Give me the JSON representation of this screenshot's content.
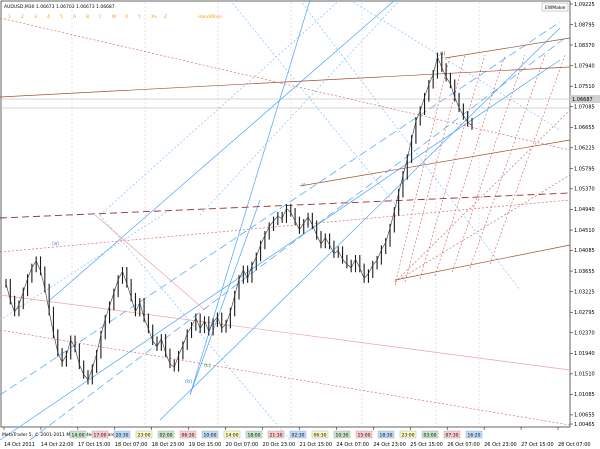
{
  "header": {
    "symbol_line": "AUDUSD,M30  1.06673 1.06703 1.06673 1.06687",
    "wave_tags": [
      "1",
      "2",
      "3",
      "4",
      "5",
      "A",
      "B",
      "C",
      "W",
      "X",
      "Y",
      "Xx",
      "Z"
    ],
    "wave_tag_color": "#ff9900",
    "extra_label": "Hand/Ross",
    "ew_maker_label": "EWMaker"
  },
  "footer": {
    "platform_label": "MetaTrader 5, © 2001-2011 MetaQuotes Software Corp.",
    "timeframe_labels": [
      "14:00",
      "17:00",
      "20:30",
      "23:00",
      "02:00",
      "06:30",
      "10:00",
      "14:00",
      "18:00",
      "21:30",
      "02:30",
      "06:30",
      "10:30",
      "15:00",
      "18:30",
      "23:00",
      "03:00",
      "07:30",
      "16:20"
    ]
  },
  "chart_data": {
    "type": "candlestick",
    "symbol": "AUDUSD",
    "timeframe": "M30",
    "ylim": [
      1.00465,
      1.09225
    ],
    "y_ticks": [
      "1.09225",
      "1.08795",
      "1.08370",
      "1.07940",
      "1.07510",
      "1.07085",
      "1.06655",
      "1.06225",
      "1.05795",
      "1.05370",
      "1.04940",
      "1.04510",
      "1.04085",
      "1.03655",
      "1.03225",
      "1.02795",
      "1.02370",
      "1.01940",
      "1.01510",
      "1.01085",
      "1.00655",
      "1.00465"
    ],
    "x_ticks": [
      "14 Oct 2011",
      "14 Oct 22:00",
      "17 Oct 15:00",
      "18 Oct 07:00",
      "18 Oct 23:00",
      "19 Oct 15:00",
      "20 Oct 07:00",
      "20 Oct 23:00",
      "21 Oct 15:00",
      "24 Oct 07:00",
      "24 Oct 23:00",
      "25 Oct 15:00",
      "26 Oct 07:00",
      "26 Oct 23:00",
      "27 Oct 15:00",
      "28 Oct 07:00"
    ],
    "current_price": 1.06687,
    "key_points": [
      {
        "label": "(a)",
        "value": 1.0387
      },
      {
        "label": "(b)",
        "value": 1.0165
      },
      {
        "label": "(c)",
        "value": 1.0188
      },
      {
        "label": "v",
        "value": 1.0489
      },
      {
        "label": "(i)",
        "value": 1.0812
      }
    ],
    "price_series": [
      1.034,
      1.0305,
      1.028,
      1.0295,
      1.0322,
      1.035,
      1.0372,
      1.0387,
      1.0366,
      1.033,
      1.0282,
      1.0235,
      1.0196,
      1.0175,
      1.019,
      1.0222,
      1.0205,
      1.017,
      1.015,
      1.0138,
      1.0162,
      1.0192,
      1.0232,
      1.0265,
      1.0293,
      1.032,
      1.0348,
      1.0365,
      1.034,
      1.0311,
      1.028,
      1.03,
      1.0268,
      1.0245,
      1.022,
      1.0208,
      1.0225,
      1.0195,
      1.0172,
      1.0165,
      1.019,
      1.021,
      1.0235,
      1.025,
      1.0268,
      1.0245,
      1.0262,
      1.024,
      1.0258,
      1.027,
      1.0246,
      1.0255,
      1.028,
      1.0315,
      1.0348,
      1.0368,
      1.035,
      1.0376,
      1.0395,
      1.042,
      1.044,
      1.0458,
      1.047,
      1.048,
      1.0475,
      1.0496,
      1.0488,
      1.047,
      1.0452,
      1.0465,
      1.0478,
      1.0462,
      1.044,
      1.0422,
      1.0435,
      1.042,
      1.0402,
      1.0408,
      1.039,
      1.038,
      1.0372,
      1.039,
      1.0372,
      1.035,
      1.036,
      1.0378,
      1.0388,
      1.041,
      1.0425,
      1.0455,
      1.049,
      1.0528,
      1.0565,
      1.06,
      1.064,
      1.0678,
      1.07,
      1.0728,
      1.0755,
      1.0776,
      1.0812,
      1.079,
      1.077,
      1.0756,
      1.0728,
      1.0706,
      1.069,
      1.0676,
      1.0669
    ]
  }
}
